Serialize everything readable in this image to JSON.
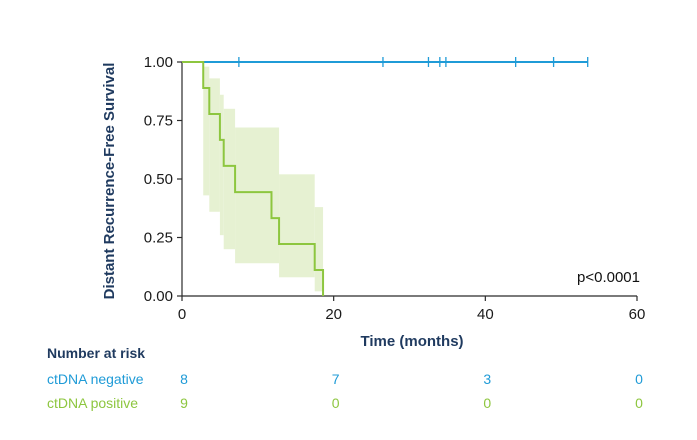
{
  "chart_data": {
    "type": "line",
    "subtype": "kaplan-meier",
    "xlabel": "Time (months)",
    "ylabel": "Distant Recurrence-Free Survival",
    "xlim": [
      0,
      60
    ],
    "ylim": [
      0,
      1
    ],
    "xticks": [
      0,
      20,
      40,
      60
    ],
    "yticks": [
      0,
      0.25,
      0.5,
      0.75,
      1.0
    ],
    "ytick_labels": [
      "0.00",
      "0.25",
      "0.50",
      "0.75",
      "1.00"
    ],
    "annotation": "p<0.0001",
    "series": [
      {
        "name": "ctDNA negative",
        "color": "#1f9bd7",
        "steps": [
          [
            0,
            1.0
          ],
          [
            53.5,
            1.0
          ]
        ],
        "censor_times": [
          7.5,
          26.5,
          32.5,
          34,
          34.8,
          44,
          49,
          53.5
        ]
      },
      {
        "name": "ctDNA positive",
        "color": "#8dc63f",
        "band_color": "#e6f1d2",
        "steps": [
          [
            0,
            1.0
          ],
          [
            2.8,
            0.889
          ],
          [
            3.6,
            0.778
          ],
          [
            5.0,
            0.667
          ],
          [
            5.5,
            0.556
          ],
          [
            7.0,
            0.444
          ],
          [
            11.8,
            0.333
          ],
          [
            12.8,
            0.222
          ],
          [
            17.5,
            0.111
          ],
          [
            18.6,
            0.0
          ]
        ],
        "ci_steps": [
          [
            2.8,
            0.43,
            0.98
          ],
          [
            3.6,
            0.36,
            0.93
          ],
          [
            5.0,
            0.26,
            0.86
          ],
          [
            5.5,
            0.2,
            0.8
          ],
          [
            7.0,
            0.14,
            0.72
          ],
          [
            12.8,
            0.08,
            0.52
          ],
          [
            17.5,
            0.02,
            0.38
          ],
          [
            18.6,
            0.0,
            0.0
          ]
        ],
        "censor_times": []
      }
    ],
    "risk_table": {
      "title": "Number at risk",
      "times": [
        0,
        20,
        40,
        60
      ],
      "rows": [
        {
          "label": "ctDNA negative",
          "color": "#1f9bd7",
          "counts": [
            "8",
            "7",
            "3",
            "0"
          ]
        },
        {
          "label": "ctDNA positive",
          "color": "#8dc63f",
          "counts": [
            "9",
            "0",
            "0",
            "0"
          ]
        }
      ]
    }
  }
}
